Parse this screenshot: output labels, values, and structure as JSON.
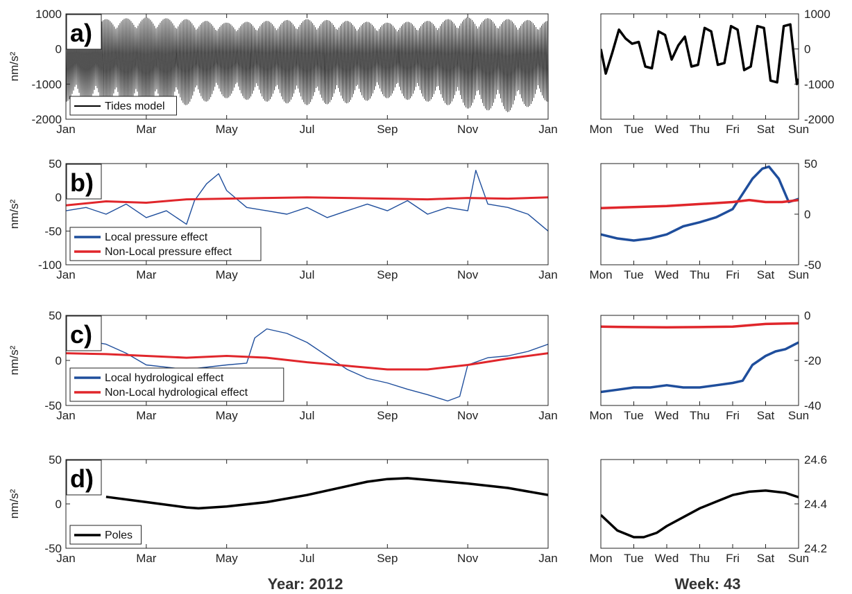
{
  "months": [
    "Jan",
    "Mar",
    "May",
    "Jul",
    "Sep",
    "Nov",
    "Jan"
  ],
  "weekdays": [
    "Mon",
    "Tue",
    "Wed",
    "Thu",
    "Fri",
    "Sat",
    "Sun"
  ],
  "ylabel": "nm/s²",
  "colors": {
    "black": "#000000",
    "blue": "#1f4e9c",
    "red": "#e0262b"
  },
  "chart_data": [
    {
      "type": "line",
      "id": "a-year",
      "panel_label": "a)",
      "xlabel": "Year:  2012",
      "ylabel": "nm/s²",
      "xlim": [
        0,
        12
      ],
      "ylim": [
        -2000,
        1000
      ],
      "yticks": [
        -2000,
        -1000,
        0,
        1000
      ],
      "legend": [
        "Tides model"
      ],
      "series": [
        {
          "name": "Tides model",
          "color": "#000000",
          "form": "oscillation",
          "period": 0.0345,
          "x": [
            0,
            1,
            2,
            3,
            4,
            5,
            6,
            7,
            8,
            9,
            10,
            11,
            12
          ],
          "y_max": [
            800,
            850,
            900,
            850,
            750,
            800,
            850,
            800,
            750,
            800,
            900,
            850,
            800
          ],
          "y_min": [
            -1500,
            -1600,
            -1750,
            -1600,
            -1400,
            -1500,
            -1600,
            -1550,
            -1400,
            -1500,
            -1700,
            -1800,
            -1500
          ]
        }
      ]
    },
    {
      "type": "line",
      "id": "a-week",
      "xlabel": "Week:  43",
      "xlim": [
        0,
        6
      ],
      "ylim": [
        -2000,
        1000
      ],
      "yticks": [
        -2000,
        -1000,
        0,
        1000
      ],
      "series": [
        {
          "name": "Tides model",
          "color": "#000000",
          "x": [
            0,
            0.15,
            0.35,
            0.55,
            0.75,
            0.95,
            1.15,
            1.35,
            1.55,
            1.75,
            1.95,
            2.15,
            2.35,
            2.55,
            2.75,
            2.95,
            3.15,
            3.35,
            3.55,
            3.75,
            3.95,
            4.15,
            4.35,
            4.55,
            4.75,
            4.95,
            5.15,
            5.35,
            5.55,
            5.75,
            5.95,
            6.0
          ],
          "y": [
            0,
            -700,
            -100,
            550,
            300,
            150,
            200,
            -500,
            -550,
            500,
            400,
            -300,
            100,
            350,
            -500,
            -450,
            600,
            500,
            -450,
            -400,
            650,
            550,
            -600,
            -500,
            650,
            600,
            -900,
            -950,
            650,
            700,
            -1000,
            -850
          ]
        }
      ]
    },
    {
      "type": "line",
      "id": "b-year",
      "panel_label": "b)",
      "xlim": [
        0,
        12
      ],
      "ylim": [
        -100,
        50
      ],
      "yticks": [
        -100,
        -50,
        0,
        50
      ],
      "legend": [
        "Local pressure effect",
        "Non-Local pressure effect"
      ],
      "series": [
        {
          "name": "Local pressure effect",
          "color": "#1f4e9c",
          "x": [
            0,
            0.5,
            1,
            1.5,
            2,
            2.5,
            3,
            3.2,
            3.5,
            3.8,
            4,
            4.5,
            5,
            5.5,
            6,
            6.5,
            7,
            7.5,
            8,
            8.5,
            9,
            9.5,
            10,
            10.2,
            10.5,
            11,
            11.5,
            12
          ],
          "y": [
            -20,
            -15,
            -25,
            -10,
            -30,
            -20,
            -40,
            -5,
            20,
            35,
            10,
            -15,
            -20,
            -25,
            -15,
            -30,
            -20,
            -10,
            -20,
            -5,
            -25,
            -15,
            -20,
            40,
            -10,
            -15,
            -25,
            -50
          ]
        },
        {
          "name": "Non-Local pressure effect",
          "color": "#e0262b",
          "x": [
            0,
            1,
            2,
            3,
            4,
            5,
            6,
            7,
            8,
            9,
            10,
            11,
            12
          ],
          "y": [
            -12,
            -6,
            -8,
            -3,
            -2,
            -1,
            0,
            -1,
            -2,
            -3,
            -1,
            -2,
            0
          ]
        }
      ]
    },
    {
      "type": "line",
      "id": "b-week",
      "xlim": [
        0,
        6
      ],
      "ylim": [
        -50,
        50
      ],
      "yticks": [
        -50,
        0,
        50
      ],
      "series": [
        {
          "name": "Local pressure effect",
          "color": "#1f4e9c",
          "x": [
            0,
            0.5,
            1,
            1.5,
            2,
            2.5,
            3,
            3.5,
            4,
            4.3,
            4.6,
            4.9,
            5.1,
            5.4,
            5.7,
            6.0
          ],
          "y": [
            -20,
            -24,
            -26,
            -24,
            -20,
            -12,
            -8,
            -3,
            5,
            20,
            35,
            45,
            47,
            35,
            12,
            15
          ]
        },
        {
          "name": "Non-Local pressure effect",
          "color": "#e0262b",
          "x": [
            0,
            1,
            2,
            3,
            4,
            4.5,
            5,
            5.5,
            6
          ],
          "y": [
            6,
            7,
            8,
            10,
            12,
            14,
            12,
            12,
            14
          ]
        }
      ]
    },
    {
      "type": "line",
      "id": "c-year",
      "panel_label": "c)",
      "xlim": [
        0,
        12
      ],
      "ylim": [
        -50,
        50
      ],
      "yticks": [
        -50,
        0,
        50
      ],
      "legend": [
        "Local hydrological effect",
        "Non-Local hydrological effect"
      ],
      "series": [
        {
          "name": "Local hydrological effect",
          "color": "#1f4e9c",
          "x": [
            0,
            0.5,
            1,
            1.5,
            2,
            3,
            4,
            4.5,
            4.7,
            5,
            5.5,
            6,
            6.5,
            7,
            7.5,
            8,
            8.5,
            9,
            9.5,
            9.8,
            10,
            10.5,
            11,
            11.5,
            12
          ],
          "y": [
            20,
            22,
            18,
            8,
            -5,
            -10,
            -5,
            -3,
            25,
            35,
            30,
            20,
            5,
            -10,
            -20,
            -25,
            -32,
            -38,
            -45,
            -40,
            -5,
            3,
            5,
            10,
            18
          ]
        },
        {
          "name": "Non-Local hydrological effect",
          "color": "#e0262b",
          "x": [
            0,
            1,
            2,
            3,
            4,
            5,
            6,
            7,
            8,
            9,
            10,
            11,
            12
          ],
          "y": [
            8,
            7,
            5,
            3,
            5,
            3,
            -2,
            -6,
            -10,
            -10,
            -5,
            2,
            8
          ]
        }
      ]
    },
    {
      "type": "line",
      "id": "c-week",
      "xlim": [
        0,
        6
      ],
      "ylim": [
        -40,
        0
      ],
      "yticks": [
        -40,
        -20,
        0
      ],
      "series": [
        {
          "name": "Local hydrological effect",
          "color": "#1f4e9c",
          "x": [
            0,
            0.5,
            1,
            1.5,
            2,
            2.5,
            3,
            3.5,
            4,
            4.3,
            4.6,
            5,
            5.3,
            5.6,
            6.0
          ],
          "y": [
            -34,
            -33,
            -32,
            -32,
            -31,
            -32,
            -32,
            -31,
            -30,
            -29,
            -22,
            -18,
            -16,
            -15,
            -12
          ]
        },
        {
          "name": "Non-Local hydrological effect",
          "color": "#e0262b",
          "x": [
            0,
            1,
            2,
            3,
            4,
            5,
            6
          ],
          "y": [
            -5,
            -5.2,
            -5.3,
            -5.2,
            -5,
            -3.8,
            -3.5
          ]
        }
      ]
    },
    {
      "type": "line",
      "id": "d-year",
      "panel_label": "d)",
      "xlim": [
        0,
        12
      ],
      "ylim": [
        -50,
        50
      ],
      "yticks": [
        -50,
        0,
        50
      ],
      "legend": [
        "Poles"
      ],
      "series": [
        {
          "name": "Poles",
          "color": "#000000",
          "x": [
            1,
            2,
            3,
            3.3,
            4,
            5,
            6,
            7,
            7.5,
            8,
            8.5,
            9,
            10,
            11,
            12
          ],
          "y": [
            8,
            2,
            -4,
            -5,
            -3,
            2,
            10,
            20,
            25,
            28,
            29,
            27,
            23,
            18,
            10
          ]
        }
      ]
    },
    {
      "type": "line",
      "id": "d-week",
      "xlim": [
        0,
        6
      ],
      "ylim": [
        24.2,
        24.6
      ],
      "yticks": [
        24.2,
        24.4,
        24.6
      ],
      "series": [
        {
          "name": "Poles",
          "color": "#000000",
          "x": [
            0,
            0.5,
            1,
            1.3,
            1.7,
            2,
            2.5,
            3,
            3.5,
            4,
            4.5,
            5,
            5.3,
            5.6,
            6
          ],
          "y": [
            24.35,
            24.28,
            24.25,
            24.25,
            24.27,
            24.3,
            24.34,
            24.38,
            24.41,
            24.44,
            24.455,
            24.46,
            24.455,
            24.45,
            24.43
          ]
        }
      ]
    }
  ]
}
